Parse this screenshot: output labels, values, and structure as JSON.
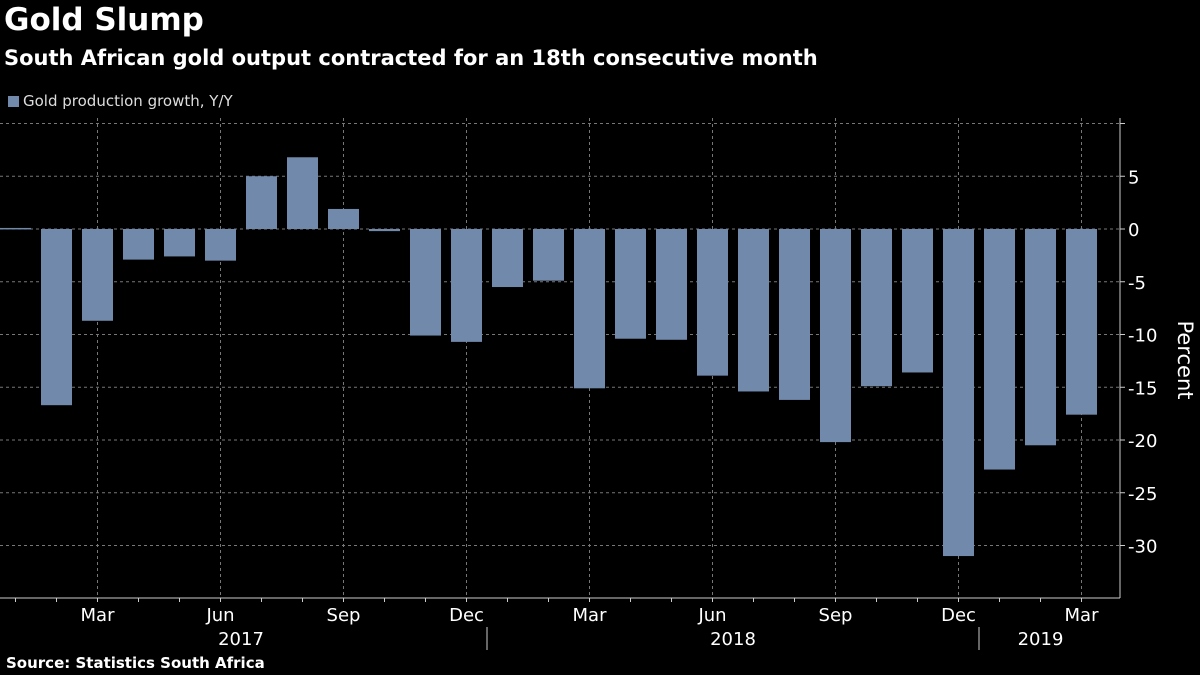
{
  "title": "Gold Slump",
  "subtitle": "South African gold output contracted for an 18th consecutive month",
  "source": "Source: Statistics South Africa",
  "chart_data": {
    "type": "bar",
    "title": "Gold Slump",
    "ylabel": "Percent",
    "ylim": [
      -35,
      10
    ],
    "yticks": [
      5,
      0,
      -5,
      -10,
      -15,
      -20,
      -25,
      -30
    ],
    "grid": true,
    "legend_position": "top-left",
    "bar_color": "#7189ab",
    "series": [
      {
        "name": "Gold production growth, Y/Y",
        "values": [
          0.1,
          -16.7,
          -8.7,
          -2.9,
          -2.6,
          -3.0,
          5.0,
          6.8,
          1.9,
          -0.2,
          -10.1,
          -10.7,
          -5.5,
          -4.9,
          -15.1,
          -10.4,
          -10.5,
          -13.9,
          -15.4,
          -16.2,
          -20.2,
          -14.9,
          -13.6,
          -31.0,
          -22.8,
          -20.5,
          -17.6
        ]
      }
    ],
    "categories": [
      "Jan 2017",
      "Feb 2017",
      "Mar 2017",
      "Apr 2017",
      "May 2017",
      "Jun 2017",
      "Jul 2017",
      "Aug 2017",
      "Sep 2017",
      "Oct 2017",
      "Nov 2017",
      "Dec 2017",
      "Jan 2018",
      "Feb 2018",
      "Mar 2018",
      "Apr 2018",
      "May 2018",
      "Jun 2018",
      "Jul 2018",
      "Aug 2018",
      "Sep 2018",
      "Oct 2018",
      "Nov 2018",
      "Dec 2018",
      "Jan 2019",
      "Feb 2019",
      "Mar 2019"
    ],
    "xtick_labels": [
      {
        "index": 2,
        "label": "Mar"
      },
      {
        "index": 5,
        "label": "Jun"
      },
      {
        "index": 8,
        "label": "Sep"
      },
      {
        "index": 11,
        "label": "Dec"
      },
      {
        "index": 14,
        "label": "Mar"
      },
      {
        "index": 17,
        "label": "Jun"
      },
      {
        "index": 20,
        "label": "Sep"
      },
      {
        "index": 23,
        "label": "Dec"
      },
      {
        "index": 26,
        "label": "Mar"
      }
    ],
    "year_labels": [
      {
        "label": "2017",
        "from": 0,
        "to": 11
      },
      {
        "label": "2018",
        "from": 12,
        "to": 23
      },
      {
        "label": "2019",
        "from": 24,
        "to": 26
      }
    ]
  }
}
